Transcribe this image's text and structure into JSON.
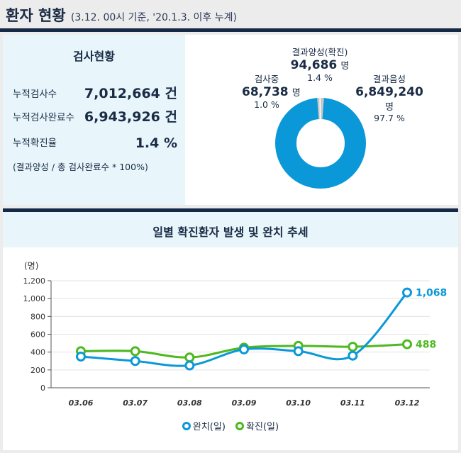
{
  "header": {
    "title": "환자 현황",
    "subtitle": "(3.12. 00시 기준, '20.1.3. 이후 누계)"
  },
  "stats": {
    "title": "검사현황",
    "rows": [
      {
        "label": "누적검사수",
        "value": "7,012,664 건"
      },
      {
        "label": "누적검사완료수",
        "value": "6,943,926 건"
      },
      {
        "label": "누적확진율",
        "value": "1.4 %"
      }
    ],
    "note": "(결과양성 / 총 검사완료수 * 100%)"
  },
  "donut": {
    "testing": {
      "label": "검사중",
      "value": "68,738",
      "unit": "명",
      "pct": "1.0 %",
      "fraction": 0.01,
      "color": "#c8c8c8"
    },
    "positive": {
      "label": "결과양성(확진)",
      "value": "94,686",
      "unit": "명",
      "pct": "1.4 %",
      "fraction": 0.014,
      "color": "#c8c8c8"
    },
    "negative": {
      "label": "결과음성",
      "value": "6,849,240",
      "unit": "명",
      "pct": "97.7 %",
      "fraction": 0.977,
      "color": "#0b98d8"
    }
  },
  "chart_title": "일별 확진환자 발생 및 완치 추세",
  "chart_data": {
    "type": "line",
    "ylabel": "(명)",
    "ylim": [
      0,
      1200
    ],
    "yticks": [
      "0",
      "200",
      "400",
      "600",
      "800",
      "1,000",
      "1,200"
    ],
    "categories": [
      "03.06",
      "03.07",
      "03.08",
      "03.09",
      "03.10",
      "03.11",
      "03.12"
    ],
    "series": [
      {
        "name": "완치(일)",
        "color": "#0b98d8",
        "values": [
          350,
          300,
          250,
          430,
          410,
          360,
          1068
        ],
        "end_label": "1,068"
      },
      {
        "name": "확진(일)",
        "color": "#4db81f",
        "values": [
          410,
          410,
          340,
          450,
          470,
          460,
          488
        ],
        "end_label": "488"
      }
    ]
  }
}
